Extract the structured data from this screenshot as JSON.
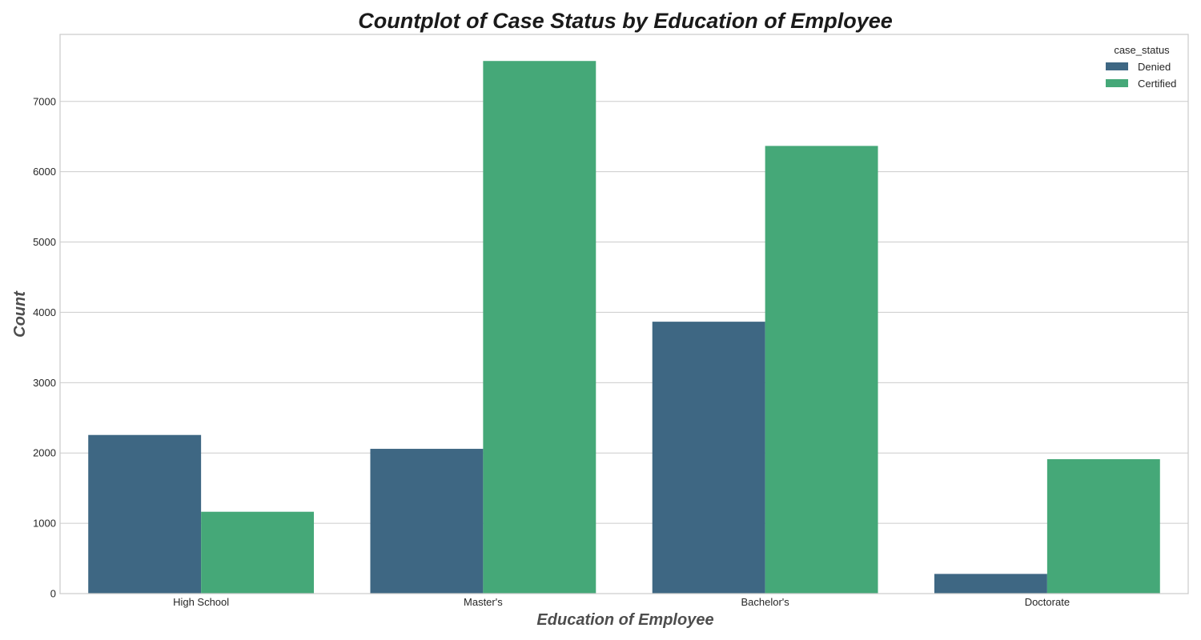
{
  "chart_data": {
    "type": "bar",
    "title": "Countplot of Case Status by Education of Employee",
    "xlabel": "Education of Employee",
    "ylabel": "Count",
    "categories": [
      "High School",
      "Master's",
      "Bachelor's",
      "Doctorate"
    ],
    "series": [
      {
        "name": "Denied",
        "color": "#3e6783",
        "values": [
          2256,
          2059,
          3867,
          280
        ]
      },
      {
        "name": "Certified",
        "color": "#45a878",
        "values": [
          1164,
          7575,
          6367,
          1912
        ]
      }
    ],
    "ylim": [
      0,
      7953
    ],
    "yticks": [
      0,
      1000,
      2000,
      3000,
      4000,
      5000,
      6000,
      7000
    ],
    "grid": true,
    "legend": {
      "title": "case_status",
      "placement": "top-right"
    }
  }
}
